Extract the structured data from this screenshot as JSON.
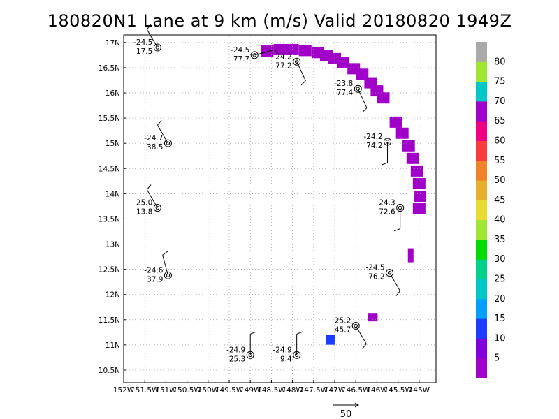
{
  "chart_data": {
    "type": "scatter",
    "title": "180820N1 Lane at 9 km (m/s) Valid 20180820 1949Z",
    "x_axis": {
      "range": [
        -152.0,
        -144.6
      ],
      "tick_values": [
        -152,
        -151.5,
        -151,
        -150.5,
        -150,
        -149.5,
        -149,
        -148.5,
        -148,
        -147.5,
        -147,
        -146.5,
        -146,
        -145.5,
        -145
      ],
      "tick_labels": [
        "152W",
        "151.5W",
        "151W",
        "150.5W",
        "150W",
        "149.5W",
        "149W",
        "148.5W",
        "148W",
        "147.5W",
        "147W",
        "146.5W",
        "146W",
        "145.5W",
        "145W"
      ]
    },
    "y_axis": {
      "range": [
        10.25,
        17.15
      ],
      "tick_values": [
        10.5,
        11,
        11.5,
        12,
        12.5,
        13,
        13.5,
        14,
        14.5,
        15,
        15.5,
        16,
        16.5,
        17
      ],
      "tick_labels": [
        "10.5N",
        "11N",
        "11.5N",
        "12N",
        "12.5N",
        "13N",
        "13.5N",
        "14N",
        "14.5N",
        "15N",
        "15.5N",
        "16N",
        "16.5N",
        "17N"
      ]
    },
    "grid": true,
    "stations": [
      {
        "lon": -151.2,
        "lat": 16.9,
        "temp": "-24.5",
        "wind": "17.5",
        "barb_dir": 330
      },
      {
        "lon": -148.9,
        "lat": 16.75,
        "temp": "-24.5",
        "wind": "77.7",
        "barb_dir": 75
      },
      {
        "lon": -147.9,
        "lat": 16.62,
        "temp": "-24.2",
        "wind": "77.2",
        "barb_dir": 155
      },
      {
        "lon": -146.45,
        "lat": 16.08,
        "temp": "-23.8",
        "wind": "77.4",
        "barb_dir": 155
      },
      {
        "lon": -150.95,
        "lat": 15.0,
        "temp": "-24.7",
        "wind": "38.5",
        "barb_dir": 330
      },
      {
        "lon": -145.75,
        "lat": 15.03,
        "temp": "-24.2",
        "wind": "74.2",
        "barb_dir": 180
      },
      {
        "lon": -151.2,
        "lat": 13.72,
        "temp": "-25.0",
        "wind": "13.8",
        "barb_dir": 330
      },
      {
        "lon": -145.45,
        "lat": 13.72,
        "temp": "-24.3",
        "wind": "72.6",
        "barb_dir": 180
      },
      {
        "lon": -150.95,
        "lat": 12.38,
        "temp": "-24.6",
        "wind": "37.9",
        "barb_dir": 345
      },
      {
        "lon": -145.7,
        "lat": 12.43,
        "temp": "-24.5",
        "wind": "76.2",
        "barb_dir": 150
      },
      {
        "lon": -146.5,
        "lat": 11.38,
        "temp": "-25.2",
        "wind": "45.7",
        "barb_dir": 150
      },
      {
        "lon": -149.0,
        "lat": 10.8,
        "temp": "-24.9",
        "wind": "25.3",
        "barb_dir": 0
      },
      {
        "lon": -147.9,
        "lat": 10.8,
        "temp": "-24.9",
        "wind": "9.4",
        "barb_dir": 0
      }
    ],
    "colorbar": {
      "levels": [
        5,
        10,
        15,
        20,
        25,
        30,
        35,
        40,
        45,
        50,
        55,
        60,
        65,
        70,
        75,
        80
      ],
      "colors": [
        "#a000c8",
        "#8200dc",
        "#1e3cff",
        "#00a0ff",
        "#00c8c8",
        "#00d28c",
        "#00dc00",
        "#a0e632",
        "#e6dc32",
        "#e6af2d",
        "#f08228",
        "#fa3c3c",
        "#f00082",
        "#a000c8",
        "#00c8c8",
        "#a0e632",
        "#aaaaaa"
      ]
    },
    "reference_vector": {
      "label": "50"
    }
  }
}
